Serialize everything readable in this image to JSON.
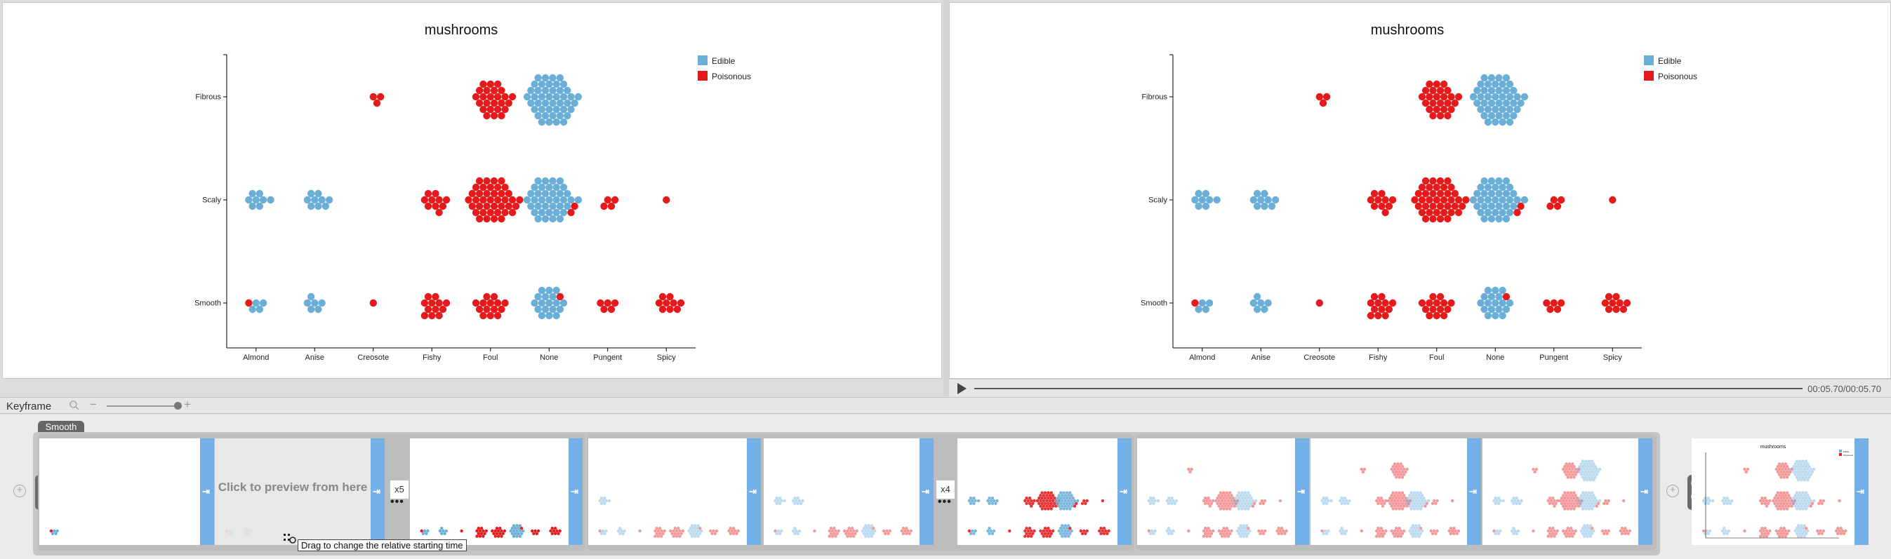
{
  "chart_data": {
    "type": "scatter",
    "title": "mushrooms",
    "categories_x": [
      "Almond",
      "Anise",
      "Creosote",
      "Fishy",
      "Foul",
      "None",
      "Pungent",
      "Spicy"
    ],
    "categories_y": [
      "Fibrous",
      "Scaly",
      "Smooth"
    ],
    "legend": {
      "position": "top-right",
      "entries": [
        {
          "name": "Edible",
          "color": "#6baed6"
        },
        {
          "name": "Poisonous",
          "color": "#e41a1c"
        }
      ]
    },
    "clusters": [
      {
        "y": "Fibrous",
        "x": "Creosote",
        "edible": 0,
        "poisonous": 3
      },
      {
        "y": "Fibrous",
        "x": "Foul",
        "edible": 0,
        "poisonous": 25
      },
      {
        "y": "Fibrous",
        "x": "None",
        "edible": 45,
        "poisonous": 0
      },
      {
        "y": "Scaly",
        "x": "Almond",
        "edible": 8,
        "poisonous": 0
      },
      {
        "y": "Scaly",
        "x": "Anise",
        "edible": 9,
        "poisonous": 0
      },
      {
        "y": "Scaly",
        "x": "Fishy",
        "edible": 0,
        "poisonous": 10
      },
      {
        "y": "Scaly",
        "x": "Foul",
        "edible": 0,
        "poisonous": 40
      },
      {
        "y": "Scaly",
        "x": "None",
        "edible": 38,
        "poisonous": 2
      },
      {
        "y": "Scaly",
        "x": "Pungent",
        "edible": 0,
        "poisonous": 4
      },
      {
        "y": "Scaly",
        "x": "Spicy",
        "edible": 0,
        "poisonous": 1
      },
      {
        "y": "Smooth",
        "x": "Almond",
        "edible": 4,
        "poisonous": 1
      },
      {
        "y": "Smooth",
        "x": "Anise",
        "edible": 6,
        "poisonous": 0
      },
      {
        "y": "Smooth",
        "x": "Creosote",
        "edible": 0,
        "poisonous": 1
      },
      {
        "y": "Smooth",
        "x": "Fishy",
        "edible": 0,
        "poisonous": 12
      },
      {
        "y": "Smooth",
        "x": "Foul",
        "edible": 0,
        "poisonous": 14
      },
      {
        "y": "Smooth",
        "x": "None",
        "edible": 18,
        "poisonous": 1
      },
      {
        "y": "Smooth",
        "x": "Pungent",
        "edible": 0,
        "poisonous": 5
      },
      {
        "y": "Smooth",
        "x": "Spicy",
        "edible": 0,
        "poisonous": 9
      }
    ]
  },
  "player": {
    "time": "00:05.70/00:05.70"
  },
  "keyframe": {
    "title": "Keyframe"
  },
  "timeline": {
    "group_label": "Smooth",
    "preview_text": "Click to preview from here",
    "multiplier_1": "x5",
    "multiplier_2": "x4",
    "dots": "•••",
    "tooltip": "Drag to change the relative starting time",
    "thumb_title": "mushrooms",
    "thumb_legend": [
      "Edible",
      "Poisonous"
    ]
  },
  "icons": {
    "zoom": "search-icon",
    "transition": "arrow-right-to-bar-icon",
    "drag": "drag-handle-icon"
  }
}
